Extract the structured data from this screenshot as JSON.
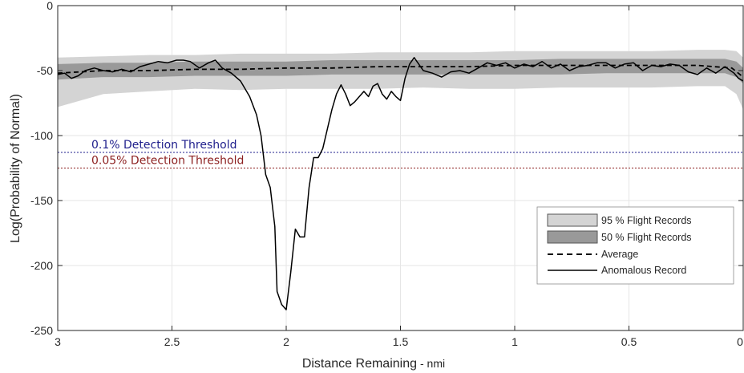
{
  "chart_data": {
    "type": "line",
    "xlabel": "Distance Remaining",
    "xlabel_unit": "- nmi",
    "ylabel": "Log(Probability of Normal)",
    "xlim": [
      3,
      0
    ],
    "x_reversed": true,
    "ylim": [
      -250,
      0
    ],
    "xticks": [
      3,
      2.5,
      2,
      1.5,
      1,
      0.5,
      0
    ],
    "xtick_labels": [
      "3",
      "2.5",
      "2",
      "1.5",
      "1",
      "0.5",
      "0"
    ],
    "yticks": [
      0,
      -50,
      -100,
      -150,
      -200,
      -250
    ],
    "ytick_labels": [
      "0",
      "-50",
      "-100",
      "-150",
      "-200",
      "-250"
    ],
    "grid": true,
    "legend": {
      "placement": "bottom-right",
      "entries": [
        {
          "key": "band95",
          "label": "95 % Flight Records"
        },
        {
          "key": "band50",
          "label": "50 % Flight Records"
        },
        {
          "key": "average",
          "label": "Average"
        },
        {
          "key": "anomalous",
          "label": "Anomalous Record"
        }
      ]
    },
    "colors": {
      "band95": "#d4d4d4",
      "band50": "#999999",
      "average": "#000000",
      "anomalous": "#000000",
      "threshold_01": "#1f1f8c",
      "threshold_005": "#8c1f1f",
      "grid": "#e6e6e6",
      "axis": "#262626"
    },
    "thresholds": [
      {
        "label": "0.1% Detection Threshold",
        "y": -113,
        "color_key": "threshold_01"
      },
      {
        "label": "0.05% Detection Threshold",
        "y": -125,
        "color_key": "threshold_005"
      }
    ],
    "bands": {
      "x": [
        3.0,
        2.8,
        2.6,
        2.4,
        2.2,
        2.0,
        1.8,
        1.6,
        1.4,
        1.2,
        1.0,
        0.8,
        0.6,
        0.4,
        0.2,
        0.08,
        0.03,
        0.0
      ],
      "p95_upper": [
        -40,
        -39,
        -38,
        -38,
        -37,
        -37,
        -37,
        -36,
        -36,
        -36,
        -35,
        -35,
        -35,
        -35,
        -34,
        -34,
        -35,
        -40
      ],
      "p95_lower": [
        -78,
        -68,
        -66,
        -64,
        -65,
        -64,
        -64,
        -64,
        -63,
        -64,
        -64,
        -63,
        -63,
        -63,
        -62,
        -62,
        -68,
        -80
      ],
      "p50_upper": [
        -45,
        -44,
        -44,
        -43,
        -43,
        -43,
        -42,
        -42,
        -42,
        -42,
        -42,
        -41,
        -41,
        -41,
        -41,
        -41,
        -43,
        -48
      ],
      "p50_lower": [
        -57,
        -55,
        -55,
        -54,
        -54,
        -54,
        -53,
        -53,
        -53,
        -53,
        -53,
        -53,
        -52,
        -52,
        -52,
        -52,
        -55,
        -60
      ]
    },
    "series": [
      {
        "name": "Average",
        "key": "average",
        "style": "dashed",
        "x": [
          3.0,
          2.8,
          2.6,
          2.4,
          2.2,
          2.0,
          1.8,
          1.6,
          1.4,
          1.2,
          1.0,
          0.8,
          0.6,
          0.4,
          0.2,
          0.05,
          0.0
        ],
        "y": [
          -52,
          -50,
          -50,
          -49,
          -49,
          -48,
          -48,
          -47,
          -47,
          -47,
          -46,
          -46,
          -46,
          -46,
          -46,
          -48,
          -55
        ]
      },
      {
        "name": "Anomalous Record",
        "key": "anomalous",
        "style": "solid",
        "x": [
          3.0,
          2.97,
          2.94,
          2.91,
          2.88,
          2.84,
          2.8,
          2.76,
          2.72,
          2.68,
          2.64,
          2.6,
          2.56,
          2.52,
          2.48,
          2.45,
          2.42,
          2.38,
          2.34,
          2.31,
          2.28,
          2.24,
          2.2,
          2.16,
          2.13,
          2.11,
          2.09,
          2.07,
          2.05,
          2.04,
          2.02,
          2.0,
          1.98,
          1.96,
          1.94,
          1.92,
          1.9,
          1.88,
          1.86,
          1.84,
          1.82,
          1.8,
          1.78,
          1.76,
          1.74,
          1.72,
          1.7,
          1.68,
          1.66,
          1.64,
          1.62,
          1.6,
          1.58,
          1.56,
          1.54,
          1.52,
          1.5,
          1.48,
          1.46,
          1.44,
          1.42,
          1.4,
          1.36,
          1.32,
          1.28,
          1.24,
          1.2,
          1.16,
          1.12,
          1.08,
          1.04,
          1.0,
          0.96,
          0.92,
          0.88,
          0.84,
          0.8,
          0.76,
          0.72,
          0.68,
          0.64,
          0.6,
          0.56,
          0.52,
          0.48,
          0.44,
          0.4,
          0.36,
          0.32,
          0.28,
          0.24,
          0.2,
          0.16,
          0.12,
          0.08,
          0.04,
          0.02,
          0.0
        ],
        "y": [
          -53,
          -52,
          -56,
          -54,
          -50,
          -48,
          -50,
          -51,
          -49,
          -51,
          -47,
          -45,
          -43,
          -44,
          -42,
          -42,
          -43,
          -48,
          -44,
          -42,
          -48,
          -52,
          -58,
          -70,
          -84,
          -100,
          -130,
          -140,
          -170,
          -220,
          -230,
          -234,
          -205,
          -172,
          -178,
          -178,
          -140,
          -117,
          -117,
          -110,
          -95,
          -80,
          -68,
          -61,
          -68,
          -77,
          -74,
          -70,
          -66,
          -70,
          -62,
          -60,
          -68,
          -72,
          -66,
          -70,
          -73,
          -56,
          -45,
          -40,
          -45,
          -50,
          -52,
          -55,
          -51,
          -50,
          -52,
          -48,
          -44,
          -46,
          -44,
          -48,
          -45,
          -47,
          -43,
          -48,
          -45,
          -50,
          -47,
          -46,
          -44,
          -44,
          -48,
          -45,
          -44,
          -50,
          -46,
          -47,
          -45,
          -46,
          -51,
          -53,
          -48,
          -52,
          -47,
          -52,
          -56,
          -58
        ]
      }
    ]
  }
}
